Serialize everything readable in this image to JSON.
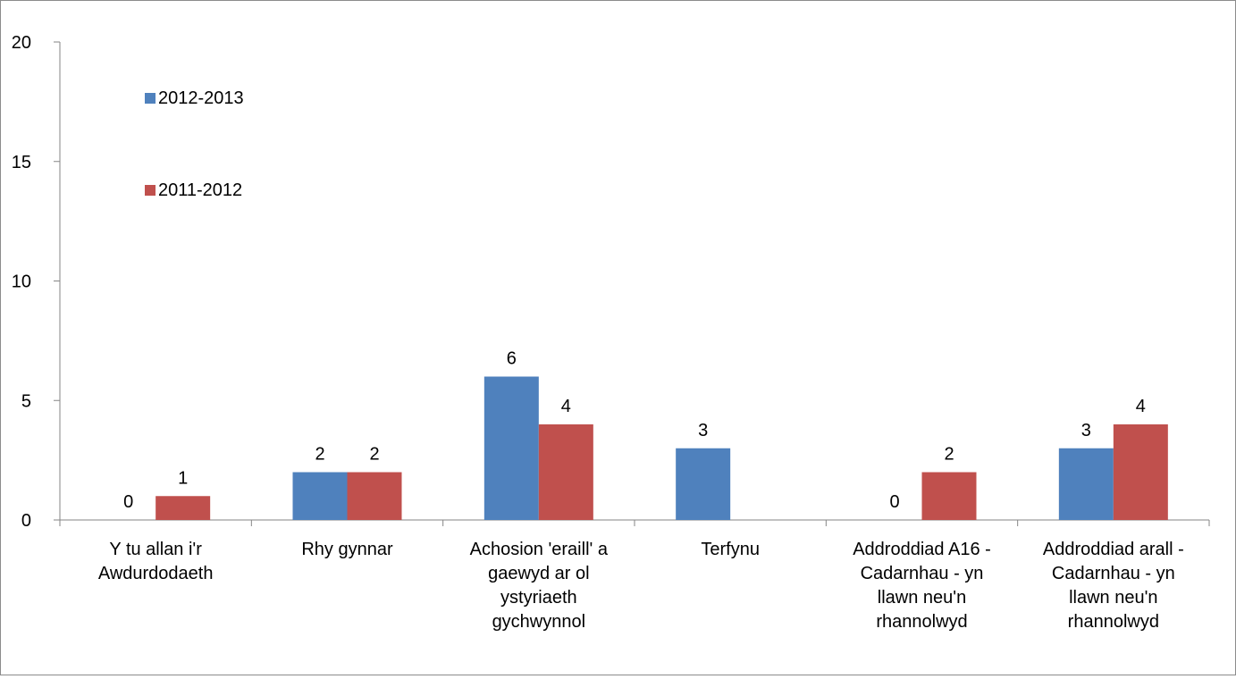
{
  "chart_data": {
    "type": "bar",
    "title": "",
    "xlabel": "",
    "ylabel": "",
    "ylim": [
      0,
      20
    ],
    "yticks": [
      0,
      5,
      10,
      15,
      20
    ],
    "grid": false,
    "legend_position": "top-left",
    "categories": [
      [
        "Y tu allan i'r",
        "Awdurdodaeth"
      ],
      [
        "Rhy gynnar"
      ],
      [
        "Achosion 'eraill' a",
        "gaewyd ar ol",
        "ystyriaeth",
        "gychwynnol"
      ],
      [
        "Terfynu"
      ],
      [
        "Addroddiad A16 -",
        "Cadarnhau - yn",
        "llawn neu'n",
        "rhannolwyd"
      ],
      [
        "Addroddiad arall -",
        "Cadarnhau - yn",
        "llawn neu'n",
        "rhannolwyd"
      ]
    ],
    "series": [
      {
        "name": "2012-2013",
        "color": "#4f81bd",
        "values": [
          0,
          2,
          6,
          3,
          0,
          3
        ],
        "labels": [
          "0",
          "2",
          "6",
          "3",
          "0",
          "3"
        ]
      },
      {
        "name": "2011-2012",
        "color": "#c0504d",
        "values": [
          1,
          2,
          4,
          0,
          2,
          4
        ],
        "labels": [
          "1",
          "2",
          "4",
          null,
          "2",
          "4"
        ]
      }
    ]
  }
}
